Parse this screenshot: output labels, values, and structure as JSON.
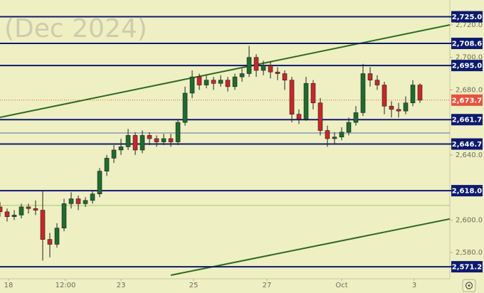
{
  "chart_data": {
    "type": "candlestick",
    "watermark": "(Dec 2024)",
    "x": [
      0,
      1,
      2,
      3,
      4,
      5,
      6,
      7,
      8,
      9,
      10,
      11,
      12,
      13,
      14,
      15,
      16,
      17,
      18,
      19,
      20,
      21,
      22,
      23,
      24,
      25,
      26,
      27,
      28,
      29,
      30,
      31,
      32,
      33,
      34,
      35,
      36,
      37,
      38,
      39,
      40,
      41,
      42,
      43,
      44,
      45,
      46,
      47,
      48,
      49,
      50,
      51,
      52,
      53,
      54,
      55,
      56,
      57,
      58,
      59
    ],
    "open": [
      2608,
      2605,
      2602,
      2603,
      2608,
      2607,
      2606,
      2588,
      2585,
      2595,
      2610,
      2613,
      2610,
      2612,
      2616,
      2630,
      2638,
      2643,
      2645,
      2652,
      2643,
      2652,
      2650,
      2648,
      2650,
      2648,
      2660,
      2678,
      2688,
      2683,
      2686,
      2684,
      2686,
      2682,
      2688,
      2690,
      2700,
      2692,
      2695,
      2691,
      2690,
      2686,
      2665,
      2662,
      2684,
      2672,
      2655,
      2650,
      2651,
      2654,
      2660,
      2666,
      2690,
      2686,
      2683,
      2670,
      2668,
      2667,
      2672,
      2683
    ],
    "high": [
      2611,
      2607,
      2606,
      2610,
      2610,
      2612,
      2618,
      2592,
      2598,
      2613,
      2617,
      2615,
      2614,
      2618,
      2632,
      2640,
      2646,
      2650,
      2656,
      2654,
      2655,
      2654,
      2652,
      2653,
      2653,
      2662,
      2682,
      2692,
      2690,
      2689,
      2688,
      2689,
      2688,
      2690,
      2693,
      2707,
      2702,
      2698,
      2697,
      2694,
      2692,
      2688,
      2668,
      2688,
      2686,
      2675,
      2658,
      2654,
      2657,
      2663,
      2670,
      2696,
      2694,
      2689,
      2685,
      2673,
      2672,
      2676,
      2686,
      2684
    ],
    "low": [
      2602,
      2599,
      2600,
      2601,
      2604,
      2603,
      2575,
      2577,
      2583,
      2593,
      2607,
      2606,
      2608,
      2610,
      2614,
      2627,
      2635,
      2640,
      2643,
      2640,
      2641,
      2646,
      2645,
      2646,
      2645,
      2646,
      2658,
      2675,
      2680,
      2681,
      2680,
      2682,
      2679,
      2680,
      2685,
      2688,
      2688,
      2689,
      2687,
      2686,
      2680,
      2660,
      2659,
      2661,
      2668,
      2652,
      2645,
      2647,
      2649,
      2652,
      2658,
      2664,
      2682,
      2680,
      2665,
      2663,
      2663,
      2665,
      2670,
      2672
    ],
    "close": [
      2605,
      2602,
      2603,
      2608,
      2607,
      2606,
      2588,
      2585,
      2595,
      2610,
      2613,
      2610,
      2612,
      2616,
      2630,
      2638,
      2643,
      2645,
      2652,
      2643,
      2652,
      2650,
      2648,
      2650,
      2648,
      2660,
      2678,
      2688,
      2683,
      2686,
      2684,
      2686,
      2682,
      2688,
      2690,
      2700,
      2692,
      2695,
      2691,
      2690,
      2686,
      2665,
      2662,
      2684,
      2672,
      2655,
      2650,
      2651,
      2654,
      2660,
      2666,
      2690,
      2686,
      2683,
      2670,
      2668,
      2667,
      2672,
      2683,
      2673.7
    ],
    "up_color": "#1e6b2e",
    "down_color": "#c62828",
    "xlim": [
      0,
      63.2
    ],
    "xticks": [
      {
        "value": 1.2,
        "label": "18"
      },
      {
        "value": 9.2,
        "label": "12:00"
      },
      {
        "value": 17,
        "label": "23"
      },
      {
        "value": 27.2,
        "label": "25"
      },
      {
        "value": 37.5,
        "label": "27"
      },
      {
        "value": 48,
        "label": "Oct"
      },
      {
        "value": 58.2,
        "label": "3"
      }
    ],
    "ylim": [
      2563.8,
      2735.3
    ],
    "yticks": [
      {
        "value": 2580,
        "label": "2,580.0"
      },
      {
        "value": 2600,
        "label": "2,600.0"
      },
      {
        "value": 2640,
        "label": "2,640.0"
      },
      {
        "value": 2680,
        "label": "2,680.0"
      },
      {
        "value": 2700,
        "label": "2,700.0"
      },
      {
        "value": 2720,
        "label": "2,720.0"
      }
    ],
    "levels": [
      {
        "value": 2725,
        "label": "2,725.0"
      },
      {
        "value": 2708.6,
        "label": "2,708.6"
      },
      {
        "value": 2695,
        "label": "2,695.0"
      },
      {
        "value": 2661.7,
        "label": "2,661.7"
      },
      {
        "value": 2646.7,
        "label": "2,646.7"
      },
      {
        "value": 2618,
        "label": "2,618.0"
      },
      {
        "value": 2571.2,
        "label": "2,571.2"
      }
    ],
    "level_color": "#0d1b6e",
    "extra_lines": [
      {
        "value": 2653.5,
        "color": "#5a6fa8"
      },
      {
        "value": 2608.9,
        "color": "#9ccc65"
      }
    ],
    "last_price": {
      "value": 2673.7,
      "label": "2,673.7",
      "color": "#e5533d"
    },
    "trend_lines": [
      {
        "x": [
          0,
          63.2
        ],
        "y": [
          2663.1,
          2720
        ],
        "color": "#2e6b1e"
      },
      {
        "x": [
          24,
          63.2
        ],
        "y": [
          2566,
          2600.6
        ],
        "color": "#2e6b1e"
      }
    ]
  }
}
